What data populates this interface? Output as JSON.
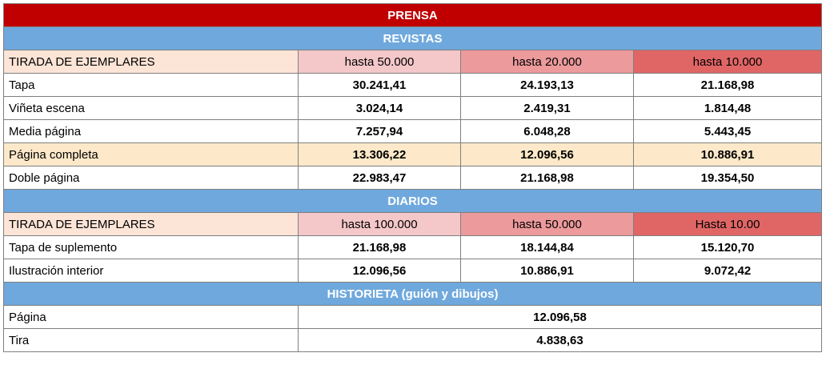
{
  "title": "PRENSA",
  "revistas": {
    "header": "REVISTAS",
    "tirada_label": "TIRADA DE EJEMPLARES",
    "tiers": [
      "hasta 50.000",
      "hasta 20.000",
      "hasta 10.000"
    ],
    "rows": [
      {
        "label": "Tapa",
        "values": [
          "30.241,41",
          "24.193,13",
          "21.168,98"
        ]
      },
      {
        "label": "Viñeta escena",
        "values": [
          "3.024,14",
          "2.419,31",
          "1.814,48"
        ]
      },
      {
        "label": "Media página",
        "values": [
          "7.257,94",
          "6.048,28",
          "5.443,45"
        ]
      },
      {
        "label": "Página completa",
        "values": [
          "13.306,22",
          "12.096,56",
          "10.886,91"
        ]
      },
      {
        "label": "Doble página",
        "values": [
          "22.983,47",
          "21.168,98",
          "19.354,50"
        ]
      }
    ]
  },
  "diarios": {
    "header": "DIARIOS",
    "tirada_label": "TIRADA DE EJEMPLARES",
    "tiers": [
      "hasta 100.000",
      "hasta 50.000",
      "Hasta 10.00"
    ],
    "rows": [
      {
        "label": "Tapa de suplemento",
        "values": [
          "21.168,98",
          "18.144,84",
          "15.120,70"
        ]
      },
      {
        "label": "Ilustración interior",
        "values": [
          "12.096,56",
          "10.886,91",
          "9.072,42"
        ]
      }
    ]
  },
  "historieta": {
    "header": "HISTORIETA (guión y dibujos)",
    "rows": [
      {
        "label": "Página",
        "value": "12.096,58"
      },
      {
        "label": "Tira",
        "value": "4.838,63"
      }
    ]
  },
  "colors": {
    "title_bg": "#c00000",
    "section_bg": "#6fa8dc",
    "tirada_bg": "#fce4d6",
    "highlight_bg": "#fde9c9",
    "tier1_bg": "#f4c7c9",
    "tier2_bg": "#ec9a9c",
    "tier3_bg": "#e06666"
  }
}
